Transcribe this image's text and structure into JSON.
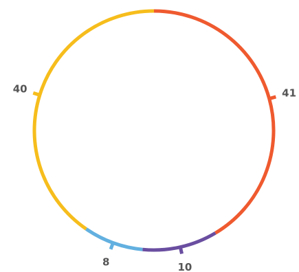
{
  "chart_data": {
    "type": "pie",
    "style": "ring",
    "categories": [
      "41",
      "10",
      "8",
      "40"
    ],
    "values": [
      41,
      10,
      8,
      40
    ],
    "labels": [
      "41",
      "10",
      "8",
      "40"
    ],
    "colors": [
      "#ef5a2f",
      "#6a4ea0",
      "#62b0e0",
      "#f6bd1c"
    ],
    "start": "top",
    "direction": "clockwise",
    "title": "",
    "legend": "none"
  }
}
